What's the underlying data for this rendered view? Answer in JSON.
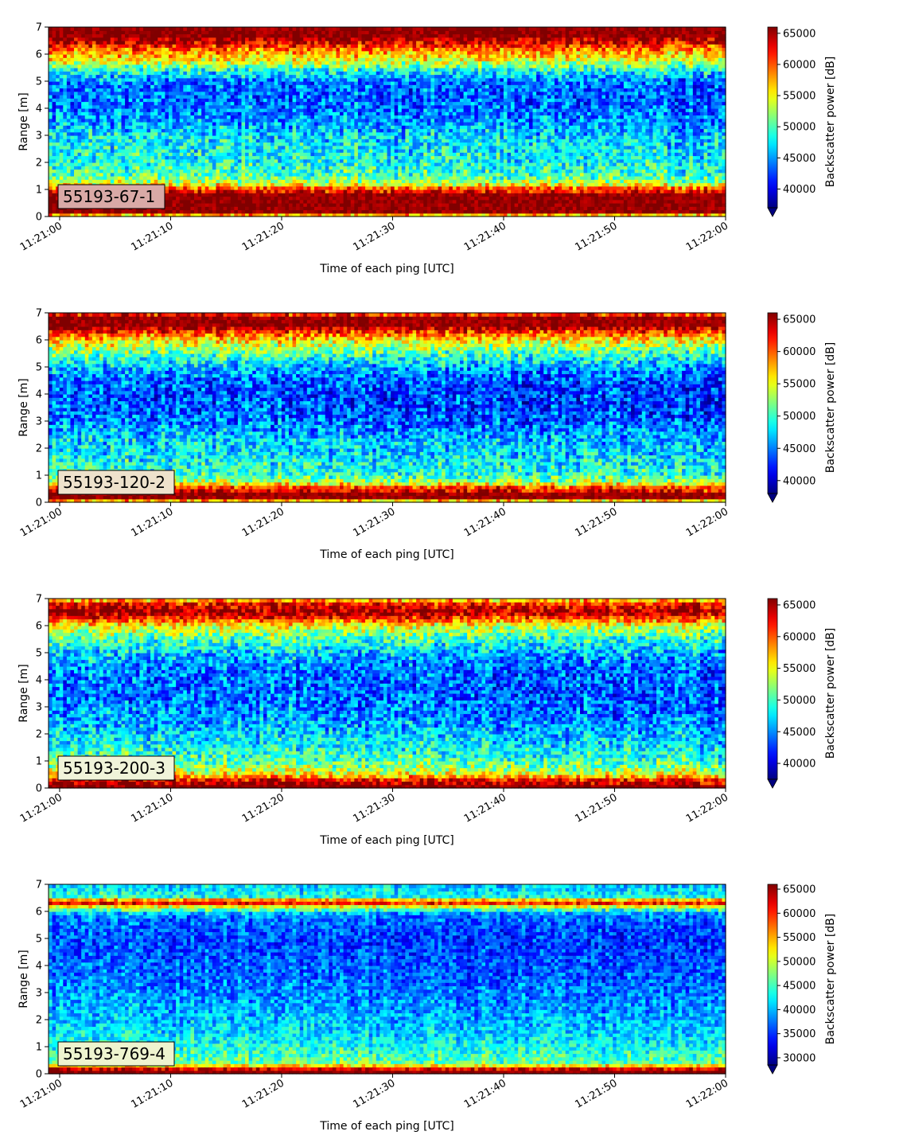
{
  "chart_data": [
    {
      "type": "heatmap",
      "label": "55193-67-1",
      "xlabel": "Time of each ping [UTC]",
      "ylabel": "Range [m]",
      "colorbar_label": "Backscatter power [dB]",
      "colormap": "jet",
      "x_ticks": [
        "11:21:00",
        "11:21:10",
        "11:21:20",
        "11:21:30",
        "11:21:40",
        "11:21:50",
        "11:22:00"
      ],
      "y_ticks": [
        0,
        1,
        2,
        3,
        4,
        5,
        6,
        7
      ],
      "ylim": [
        0,
        7
      ],
      "clim": [
        37000,
        66000
      ],
      "colorbar_ticks": [
        40000,
        45000,
        50000,
        55000,
        60000,
        65000
      ],
      "colorbar_extend": "min",
      "label_box_color": "#d9a9a6",
      "profile": {
        "range_m": [
          0.0,
          0.15,
          0.3,
          0.8,
          1.05,
          1.2,
          1.5,
          2.0,
          2.5,
          3.0,
          3.5,
          4.0,
          4.5,
          5.0,
          5.4,
          5.8,
          6.1,
          6.35,
          6.6,
          7.0
        ],
        "power": [
          52000,
          66000,
          66000,
          66000,
          61000,
          55000,
          50500,
          49000,
          48500,
          47500,
          45500,
          44500,
          44000,
          44500,
          49000,
          55500,
          58500,
          62500,
          66000,
          66000
        ]
      }
    },
    {
      "type": "heatmap",
      "label": "55193-120-2",
      "xlabel": "Time of each ping [UTC]",
      "ylabel": "Range [m]",
      "colorbar_label": "Backscatter power [dB]",
      "colormap": "jet",
      "x_ticks": [
        "11:21:00",
        "11:21:10",
        "11:21:20",
        "11:21:30",
        "11:21:40",
        "11:21:50",
        "11:22:00"
      ],
      "y_ticks": [
        0,
        1,
        2,
        3,
        4,
        5,
        6,
        7
      ],
      "ylim": [
        0,
        7
      ],
      "clim": [
        38000,
        66000
      ],
      "colorbar_ticks": [
        40000,
        45000,
        50000,
        55000,
        60000,
        65000
      ],
      "colorbar_extend": "min",
      "label_box_color": "#eee2cc",
      "profile": {
        "range_m": [
          0.0,
          0.15,
          0.3,
          0.55,
          0.75,
          1.0,
          1.5,
          2.0,
          2.5,
          3.0,
          3.5,
          4.0,
          4.5,
          5.0,
          5.5,
          6.0,
          6.25,
          6.5,
          6.85,
          7.0
        ],
        "power": [
          52000,
          66000,
          66000,
          62000,
          54000,
          50500,
          49000,
          48000,
          47000,
          45000,
          44000,
          44000,
          44500,
          47000,
          51000,
          56500,
          61000,
          66000,
          66000,
          60000
        ]
      }
    },
    {
      "type": "heatmap",
      "label": "55193-200-3",
      "xlabel": "Time of each ping [UTC]",
      "ylabel": "Range [m]",
      "colorbar_label": "Backscatter power [dB]",
      "colormap": "jet",
      "x_ticks": [
        "11:21:00",
        "11:21:10",
        "11:21:20",
        "11:21:30",
        "11:21:40",
        "11:21:50",
        "11:22:00"
      ],
      "y_ticks": [
        0,
        1,
        2,
        3,
        4,
        5,
        6,
        7
      ],
      "ylim": [
        0,
        7
      ],
      "clim": [
        37500,
        66000
      ],
      "colorbar_ticks": [
        40000,
        45000,
        50000,
        55000,
        60000,
        65000
      ],
      "colorbar_extend": "min",
      "label_box_color": "#f0f4d9",
      "profile": {
        "range_m": [
          0.0,
          0.15,
          0.35,
          0.5,
          0.8,
          1.2,
          1.6,
          2.0,
          2.5,
          3.0,
          3.5,
          4.0,
          4.5,
          5.0,
          5.5,
          6.0,
          6.25,
          6.5,
          6.8,
          7.0
        ],
        "power": [
          66000,
          66000,
          62000,
          56000,
          52500,
          50000,
          48500,
          47500,
          46000,
          45000,
          44500,
          44500,
          45000,
          47000,
          50500,
          55000,
          61000,
          66000,
          63000,
          56000
        ]
      }
    },
    {
      "type": "heatmap",
      "label": "55193-769-4",
      "xlabel": "Time of each ping [UTC]",
      "ylabel": "Range [m]",
      "colorbar_label": "Backscatter power [dB]",
      "colormap": "jet",
      "x_ticks": [
        "11:21:00",
        "11:21:10",
        "11:21:20",
        "11:21:30",
        "11:21:40",
        "11:21:50",
        "11:22:00"
      ],
      "y_ticks": [
        0,
        1,
        2,
        3,
        4,
        5,
        6,
        7
      ],
      "ylim": [
        0,
        7
      ],
      "clim": [
        28500,
        66000
      ],
      "colorbar_ticks": [
        30000,
        35000,
        40000,
        45000,
        50000,
        55000,
        60000,
        65000
      ],
      "colorbar_extend": "min",
      "label_box_color": "#eef4cf",
      "profile": {
        "range_m": [
          0.0,
          0.15,
          0.25,
          0.4,
          0.8,
          1.2,
          1.6,
          2.0,
          2.5,
          3.0,
          3.5,
          4.0,
          4.5,
          5.0,
          5.5,
          5.9,
          6.15,
          6.35,
          6.55,
          7.0
        ],
        "power": [
          66000,
          66000,
          58000,
          47000,
          45000,
          43000,
          41500,
          40500,
          39500,
          38500,
          37500,
          37000,
          36500,
          36000,
          37000,
          38500,
          49000,
          64000,
          44000,
          41000
        ]
      }
    }
  ]
}
